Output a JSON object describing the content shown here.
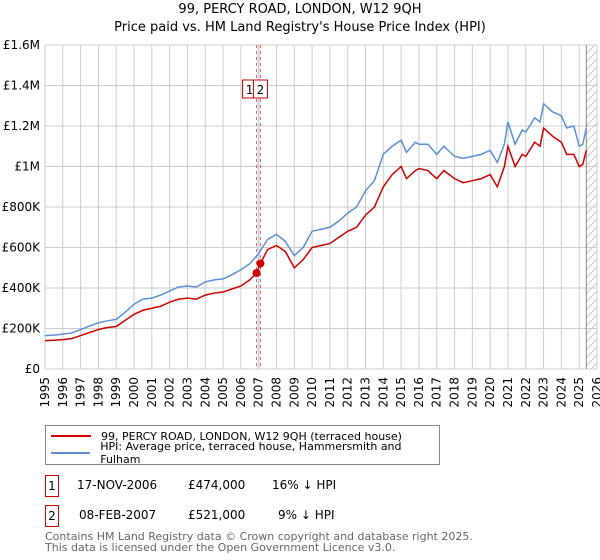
{
  "title_line1": "99, PERCY ROAD, LONDON, W12 9QH",
  "title_line2": "Price paid vs. HM Land Registry's House Price Index (HPI)",
  "chart_data": {
    "type": "line",
    "xlim": [
      1995,
      2026
    ],
    "ylim": [
      0,
      1600000
    ],
    "x_ticks": [
      "1995",
      "1996",
      "1997",
      "1998",
      "1999",
      "2000",
      "2001",
      "2002",
      "2003",
      "2004",
      "2005",
      "2006",
      "2007",
      "2008",
      "2009",
      "2010",
      "2011",
      "2012",
      "2013",
      "2014",
      "2015",
      "2016",
      "2017",
      "2018",
      "2019",
      "2020",
      "2021",
      "2022",
      "2023",
      "2024",
      "2025",
      "2026"
    ],
    "y_ticks": [
      {
        "v": 0,
        "label": "£0"
      },
      {
        "v": 200000,
        "label": "£200K"
      },
      {
        "v": 400000,
        "label": "£400K"
      },
      {
        "v": 600000,
        "label": "£600K"
      },
      {
        "v": 800000,
        "label": "£800K"
      },
      {
        "v": 1000000,
        "label": "£1M"
      },
      {
        "v": 1200000,
        "label": "£1.2M"
      },
      {
        "v": 1400000,
        "label": "£1.4M"
      },
      {
        "v": 1600000,
        "label": "£1.6M"
      }
    ],
    "grid": true,
    "series": [
      {
        "name": "99, PERCY ROAD, LONDON, W12 9QH (terraced house)",
        "color": "#cc0000",
        "points": [
          [
            1995,
            140000
          ],
          [
            1995.5,
            142000
          ],
          [
            1996,
            145000
          ],
          [
            1996.5,
            150000
          ],
          [
            1997,
            165000
          ],
          [
            1997.5,
            180000
          ],
          [
            1998,
            195000
          ],
          [
            1998.5,
            205000
          ],
          [
            1999,
            210000
          ],
          [
            1999.5,
            240000
          ],
          [
            2000,
            270000
          ],
          [
            2000.5,
            290000
          ],
          [
            2001,
            300000
          ],
          [
            2001.5,
            310000
          ],
          [
            2002,
            330000
          ],
          [
            2002.5,
            345000
          ],
          [
            2003,
            350000
          ],
          [
            2003.5,
            345000
          ],
          [
            2004,
            365000
          ],
          [
            2004.5,
            375000
          ],
          [
            2005,
            380000
          ],
          [
            2005.5,
            395000
          ],
          [
            2006,
            410000
          ],
          [
            2006.5,
            440000
          ],
          [
            2006.88,
            474000
          ],
          [
            2007.1,
            521000
          ],
          [
            2007.5,
            590000
          ],
          [
            2008,
            610000
          ],
          [
            2008.5,
            580000
          ],
          [
            2009,
            500000
          ],
          [
            2009.5,
            540000
          ],
          [
            2010,
            600000
          ],
          [
            2010.5,
            610000
          ],
          [
            2011,
            620000
          ],
          [
            2011.5,
            650000
          ],
          [
            2012,
            680000
          ],
          [
            2012.5,
            700000
          ],
          [
            2013,
            760000
          ],
          [
            2013.5,
            800000
          ],
          [
            2014,
            900000
          ],
          [
            2014.5,
            960000
          ],
          [
            2015,
            1000000
          ],
          [
            2015.3,
            940000
          ],
          [
            2015.8,
            980000
          ],
          [
            2016,
            990000
          ],
          [
            2016.5,
            980000
          ],
          [
            2017,
            940000
          ],
          [
            2017.4,
            980000
          ],
          [
            2018,
            940000
          ],
          [
            2018.5,
            920000
          ],
          [
            2019,
            930000
          ],
          [
            2019.5,
            940000
          ],
          [
            2020,
            960000
          ],
          [
            2020.4,
            900000
          ],
          [
            2020.8,
            1000000
          ],
          [
            2021,
            1100000
          ],
          [
            2021.4,
            1000000
          ],
          [
            2021.8,
            1060000
          ],
          [
            2022,
            1050000
          ],
          [
            2022.5,
            1120000
          ],
          [
            2022.8,
            1100000
          ],
          [
            2023,
            1190000
          ],
          [
            2023.5,
            1150000
          ],
          [
            2024,
            1120000
          ],
          [
            2024.3,
            1060000
          ],
          [
            2024.7,
            1060000
          ],
          [
            2025,
            1000000
          ],
          [
            2025.2,
            1010000
          ],
          [
            2025.4,
            1080000
          ]
        ]
      },
      {
        "name": "HPI: Average price, terraced house, Hammersmith and Fulham",
        "color": "#5b8fd4",
        "points": [
          [
            1995,
            165000
          ],
          [
            1995.5,
            167000
          ],
          [
            1996,
            172000
          ],
          [
            1996.5,
            178000
          ],
          [
            1997,
            195000
          ],
          [
            1997.5,
            212000
          ],
          [
            1998,
            228000
          ],
          [
            1998.5,
            238000
          ],
          [
            1999,
            245000
          ],
          [
            1999.5,
            280000
          ],
          [
            2000,
            320000
          ],
          [
            2000.5,
            345000
          ],
          [
            2001,
            350000
          ],
          [
            2001.5,
            365000
          ],
          [
            2002,
            385000
          ],
          [
            2002.5,
            405000
          ],
          [
            2003,
            410000
          ],
          [
            2003.5,
            405000
          ],
          [
            2004,
            430000
          ],
          [
            2004.5,
            440000
          ],
          [
            2005,
            445000
          ],
          [
            2005.5,
            465000
          ],
          [
            2006,
            490000
          ],
          [
            2006.5,
            520000
          ],
          [
            2007,
            570000
          ],
          [
            2007.5,
            640000
          ],
          [
            2008,
            665000
          ],
          [
            2008.5,
            630000
          ],
          [
            2009,
            560000
          ],
          [
            2009.5,
            600000
          ],
          [
            2010,
            680000
          ],
          [
            2010.5,
            690000
          ],
          [
            2011,
            700000
          ],
          [
            2011.5,
            730000
          ],
          [
            2012,
            770000
          ],
          [
            2012.5,
            800000
          ],
          [
            2013,
            880000
          ],
          [
            2013.5,
            930000
          ],
          [
            2014,
            1060000
          ],
          [
            2014.5,
            1100000
          ],
          [
            2015,
            1130000
          ],
          [
            2015.3,
            1070000
          ],
          [
            2015.8,
            1120000
          ],
          [
            2016,
            1110000
          ],
          [
            2016.5,
            1110000
          ],
          [
            2017,
            1060000
          ],
          [
            2017.4,
            1100000
          ],
          [
            2018,
            1050000
          ],
          [
            2018.5,
            1040000
          ],
          [
            2019,
            1050000
          ],
          [
            2019.5,
            1060000
          ],
          [
            2020,
            1080000
          ],
          [
            2020.4,
            1020000
          ],
          [
            2020.8,
            1110000
          ],
          [
            2021,
            1220000
          ],
          [
            2021.4,
            1110000
          ],
          [
            2021.8,
            1180000
          ],
          [
            2022,
            1170000
          ],
          [
            2022.5,
            1240000
          ],
          [
            2022.8,
            1220000
          ],
          [
            2023,
            1310000
          ],
          [
            2023.5,
            1270000
          ],
          [
            2024,
            1250000
          ],
          [
            2024.3,
            1190000
          ],
          [
            2024.7,
            1200000
          ],
          [
            2025,
            1100000
          ],
          [
            2025.2,
            1110000
          ],
          [
            2025.4,
            1190000
          ]
        ]
      }
    ],
    "sales": [
      {
        "id": "1",
        "x": 2006.88,
        "y": 474000
      },
      {
        "id": "2",
        "x": 2007.1,
        "y": 521000
      }
    ],
    "forecast_start": 2025.4
  },
  "legend": {
    "red_label": "99, PERCY ROAD, LONDON, W12 9QH (terraced house)",
    "blue_label": "HPI: Average price, terraced house, Hammersmith and Fulham"
  },
  "transactions": [
    {
      "id": "1",
      "date": "17-NOV-2006",
      "price": "£474,000",
      "hpi": "16% ↓ HPI"
    },
    {
      "id": "2",
      "date": "08-FEB-2007",
      "price": "£521,000",
      "hpi": "9% ↓ HPI"
    }
  ],
  "footer": {
    "line1": "Contains HM Land Registry data © Crown copyright and database right 2025.",
    "line2": "This data is licensed under the Open Government Licence v3.0."
  }
}
